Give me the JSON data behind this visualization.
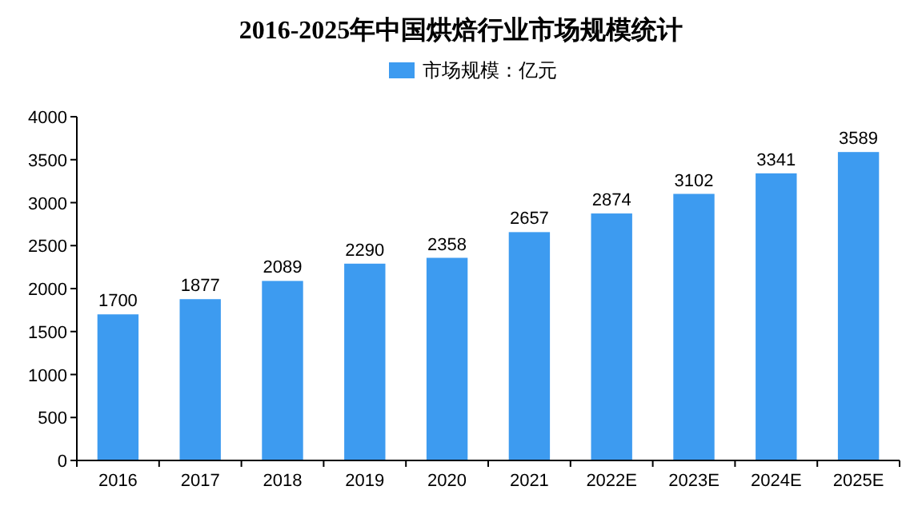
{
  "chart_data": {
    "type": "bar",
    "title": "2016-2025年中国烘焙行业市场规模统计",
    "categories": [
      "2016",
      "2017",
      "2018",
      "2019",
      "2020",
      "2021",
      "2022E",
      "2023E",
      "2024E",
      "2025E"
    ],
    "series": [
      {
        "name": "市场规模：亿元",
        "color": "#3d9bf0",
        "values": [
          1700,
          1877,
          2089,
          2290,
          2358,
          2657,
          2874,
          3102,
          3341,
          3589
        ]
      }
    ],
    "ylim": [
      0,
      4000
    ],
    "yticks": [
      0,
      500,
      1000,
      1500,
      2000,
      2500,
      3000,
      3500,
      4000
    ],
    "data_labels": true,
    "legend": "top"
  }
}
